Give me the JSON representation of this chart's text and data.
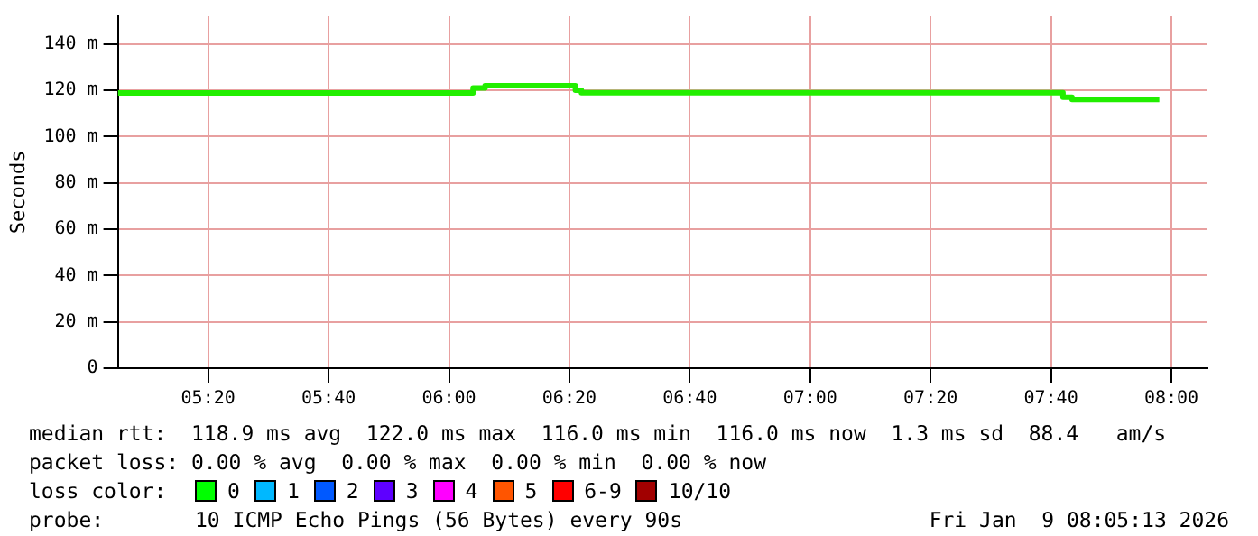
{
  "chart_data": {
    "type": "step",
    "ylabel": "Seconds",
    "x": [
      5.0833,
      6.0667,
      6.1,
      6.35,
      6.3667,
      7.7,
      7.725,
      7.9667
    ],
    "series": [
      {
        "color": "#22ee00",
        "values": [
          118.9,
          121,
          122,
          120,
          119,
          117,
          116,
          116
        ]
      }
    ],
    "xlim": [
      5.0833,
      8.1
    ],
    "xticks": [
      {
        "value": 5.3333,
        "label": "05:20"
      },
      {
        "value": 5.6667,
        "label": "05:40"
      },
      {
        "value": 6,
        "label": "06:00"
      },
      {
        "value": 6.3333,
        "label": "06:20"
      },
      {
        "value": 6.6667,
        "label": "06:40"
      },
      {
        "value": 7,
        "label": "07:00"
      },
      {
        "value": 7.3333,
        "label": "07:20"
      },
      {
        "value": 7.6667,
        "label": "07:40"
      },
      {
        "value": 8,
        "label": "08:00"
      }
    ],
    "ylim": [
      0,
      152
    ],
    "yticks": [
      0,
      {
        "value": 20,
        "label": "20 m"
      },
      {
        "value": 40,
        "label": "40 m"
      },
      {
        "value": 60,
        "label": "60 m"
      },
      {
        "value": 80,
        "label": "80 m"
      },
      {
        "value": 100,
        "label": "100 m"
      },
      {
        "value": 120,
        "label": "120 m"
      },
      {
        "value": 140,
        "label": "140 m"
      }
    ],
    "grid": true,
    "legend": false,
    "marker": "none",
    "line_style": "solid",
    "annotations": [
      "median rtt:  118.9 ms avg  122.0 ms max  116.0 ms min  116.0 ms now  1.3 ms sd  88.4   am/s",
      "packet loss: 0.00 % avg  0.00 % max  0.00 % min  0.00 % now",
      "loss color:",
      "0",
      "1",
      "2",
      "3",
      "4",
      "5",
      "6-9",
      "10/10",
      "probe:",
      "10 ICMP Echo Pings (56 Bytes) every 90s",
      "Fri Jan  9 08:05:13 2026"
    ]
  }
}
